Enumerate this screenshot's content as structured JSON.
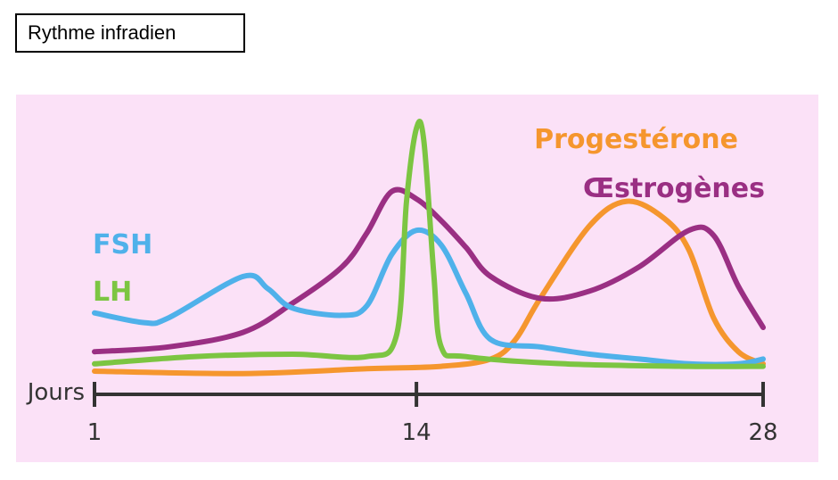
{
  "header": {
    "title": "Rythme infradien"
  },
  "colors": {
    "panel_bg": "#fbe1f7",
    "axis": "#333333",
    "fsh": "#4fb1ea",
    "lh": "#7cc542",
    "progesterone": "#f5962e",
    "oestrogenes": "#9a2f83"
  },
  "chart_data": {
    "type": "line",
    "title": "",
    "xlabel": "Jours",
    "ylabel": "",
    "xlim": [
      1,
      28
    ],
    "ylim": [
      0,
      100
    ],
    "x_ticks": [
      1,
      14,
      28
    ],
    "x_tick_labels": [
      "1",
      "14",
      "28"
    ],
    "grid": false,
    "series": [
      {
        "name": "FSH",
        "key": "fsh",
        "x": [
          1,
          3,
          4,
          7,
          8,
          9,
          11,
          12,
          13,
          14,
          15,
          16,
          17,
          19,
          21,
          23,
          25,
          27,
          28
        ],
        "y": [
          24,
          20,
          22,
          39,
          34,
          26,
          23,
          27,
          48,
          58,
          52,
          32,
          13,
          10,
          7,
          5,
          3,
          3,
          5
        ]
      },
      {
        "name": "LH",
        "key": "lh",
        "x": [
          1,
          5,
          9,
          12,
          13.2,
          13.6,
          14,
          14.3,
          14.7,
          15,
          16,
          20,
          25,
          28
        ],
        "y": [
          3,
          6,
          7,
          6,
          15,
          70,
          100,
          95,
          40,
          10,
          6,
          3,
          2,
          2
        ]
      },
      {
        "name": "Progestérone",
        "key": "progesterone",
        "x": [
          1,
          7,
          12,
          15,
          17,
          18,
          19,
          21,
          22.5,
          24,
          25,
          26,
          27,
          28
        ],
        "y": [
          0,
          -1,
          1,
          2,
          5,
          13,
          30,
          60,
          70,
          63,
          50,
          22,
          8,
          3
        ]
      },
      {
        "name": "Œstrogènes",
        "key": "oestrogenes",
        "x": [
          1,
          4,
          7,
          9,
          11,
          12,
          13,
          14,
          15,
          16,
          17,
          19,
          21,
          23,
          25,
          26,
          27,
          28
        ],
        "y": [
          8,
          10,
          16,
          28,
          43,
          57,
          74,
          71,
          62,
          51,
          39,
          30,
          33,
          43,
          58,
          56,
          35,
          18
        ]
      }
    ],
    "legend": "labels placed next to curves"
  }
}
